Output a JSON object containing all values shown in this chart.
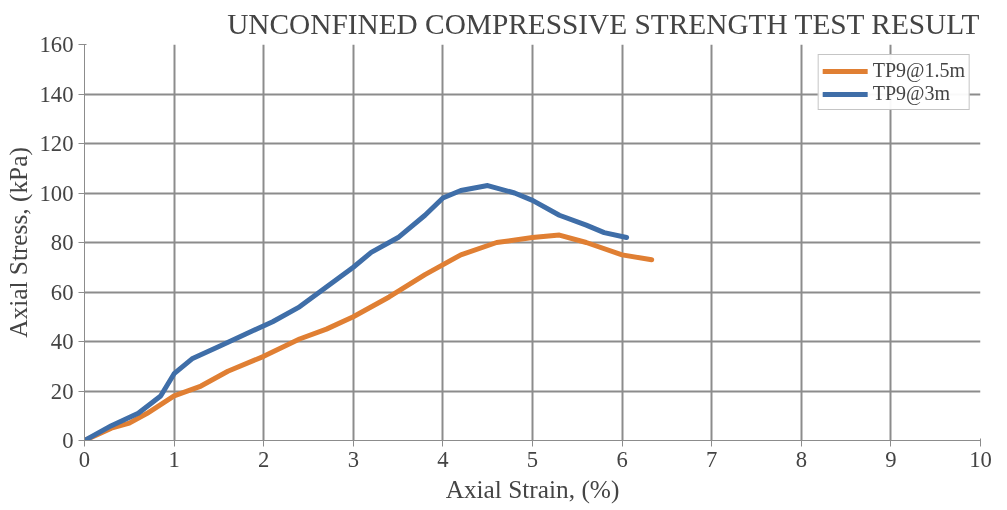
{
  "chart_data": {
    "type": "line",
    "title": "UNCONFINED COMPRESSIVE STRENGTH TEST RESULT",
    "xlabel": "Axial Strain, (%)",
    "ylabel": "Axial Stress, (kPa)",
    "xlim": [
      0,
      10
    ],
    "ylim": [
      0,
      160
    ],
    "xticks": [
      0,
      1,
      2,
      3,
      4,
      5,
      6,
      7,
      8,
      9,
      10
    ],
    "yticks": [
      0,
      20,
      40,
      60,
      80,
      100,
      120,
      140,
      160
    ],
    "grid": true,
    "legend": "top right",
    "marker": "none",
    "line_style": "solid",
    "series": [
      {
        "name": "TP9@1.5m",
        "color": "#e07f33",
        "x": [
          0,
          0.3,
          0.5,
          0.7,
          1,
          1.3,
          1.6,
          2,
          2.4,
          2.7,
          3,
          3.4,
          3.8,
          4.2,
          4.6,
          5,
          5.3,
          5.6,
          6,
          6.33
        ],
        "values": [
          0,
          5,
          7,
          11,
          18,
          22,
          28,
          34,
          41,
          45,
          50,
          58,
          67,
          75,
          80,
          82,
          83,
          80,
          75,
          73
        ]
      },
      {
        "name": "TP9@3m",
        "color": "#3f6ea8",
        "x": [
          0,
          0.3,
          0.6,
          0.85,
          1,
          1.2,
          1.5,
          1.8,
          2.1,
          2.4,
          2.7,
          3,
          3.2,
          3.5,
          3.8,
          4,
          4.2,
          4.5,
          4.8,
          5,
          5.3,
          5.6,
          5.8,
          6.05
        ],
        "values": [
          0,
          6,
          11,
          18,
          27,
          33,
          38,
          43,
          48,
          54,
          62,
          70,
          76,
          82,
          91,
          98,
          101,
          103,
          100,
          97,
          91,
          87,
          84,
          82
        ]
      }
    ]
  }
}
